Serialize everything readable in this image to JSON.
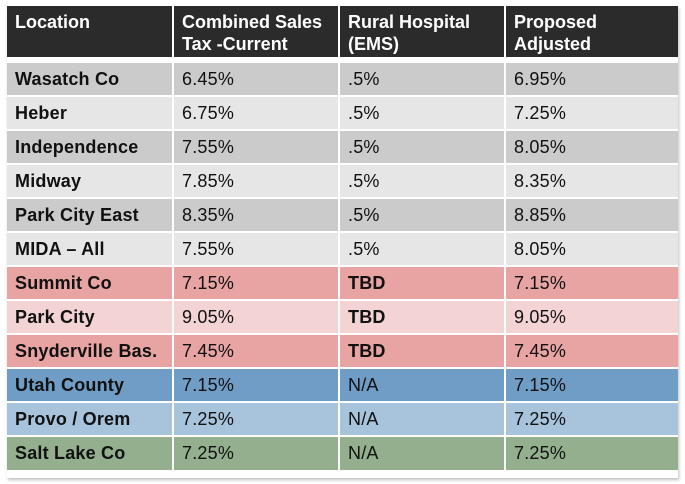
{
  "header": {
    "location": "Location",
    "combined_line1": "Combined Sales",
    "combined_line2": "Tax -Current",
    "rural_line1": "Rural Hospital",
    "rural_line2": "(EMS)",
    "proposed_line1": "Proposed",
    "proposed_line2": "Adjusted"
  },
  "rows": [
    {
      "location": "Wasatch Co",
      "current": "6.45%",
      "ems": ".5%",
      "proposed": "6.95%",
      "color": "#cbcbcb"
    },
    {
      "location": "Heber",
      "current": "6.75%",
      "ems": ".5%",
      "proposed": "7.25%",
      "color": "#e6e6e6"
    },
    {
      "location": "Independence",
      "current": "7.55%",
      "ems": ".5%",
      "proposed": "8.05%",
      "color": "#cbcbcb"
    },
    {
      "location": "Midway",
      "current": "7.85%",
      "ems": ".5%",
      "proposed": "8.35%",
      "color": "#e6e6e6"
    },
    {
      "location": "Park City East",
      "current": "8.35%",
      "ems": ".5%",
      "proposed": "8.85%",
      "color": "#cbcbcb"
    },
    {
      "location": "MIDA – All",
      "current": "7.55%",
      "ems": ".5%",
      "proposed": "8.05%",
      "color": "#e6e6e6"
    },
    {
      "location": "Summit Co",
      "current": "7.15%",
      "ems": "TBD",
      "proposed": "7.15%",
      "color": "#e8a3a3"
    },
    {
      "location": "Park City",
      "current": "9.05%",
      "ems": "TBD",
      "proposed": "9.05%",
      "color": "#f3d3d3"
    },
    {
      "location": "Snyderville Bas.",
      "current": "7.45%",
      "ems": "TBD",
      "proposed": "7.45%",
      "color": "#e8a3a3"
    },
    {
      "location": "Utah County",
      "current": "7.15%",
      "ems": "N/A",
      "proposed": "7.15%",
      "color": "#6f9dc6"
    },
    {
      "location": "Provo / Orem",
      "current": "7.25%",
      "ems": "N/A",
      "proposed": "7.25%",
      "color": "#a8c4dd"
    },
    {
      "location": "Salt Lake Co",
      "current": "7.25%",
      "ems": "N/A",
      "proposed": "7.25%",
      "color": "#93af8e"
    }
  ],
  "header_color": "#2b2b2b"
}
